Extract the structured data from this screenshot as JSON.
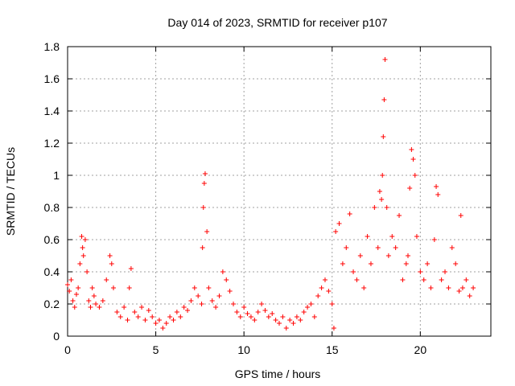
{
  "chart_data": {
    "type": "scatter",
    "title": "Day 014 of 2023, SRMTID for receiver p107",
    "xlabel": "GPS time / hours",
    "ylabel": "SRMTID / TECUs",
    "xlim": [
      0,
      24
    ],
    "ylim": [
      0,
      1.8
    ],
    "xticks": [
      0,
      5,
      10,
      15,
      20
    ],
    "xtick_labels": [
      "0",
      "5",
      "10",
      "15",
      "20"
    ],
    "yticks": [
      0,
      0.2,
      0.4,
      0.6,
      0.8,
      1,
      1.2,
      1.4,
      1.6,
      1.8
    ],
    "ytick_labels": [
      "0",
      "0.2",
      "0.4",
      "0.6",
      "0.8",
      "1",
      "1.2",
      "1.4",
      "1.6",
      "1.8"
    ],
    "grid": true,
    "marker": "plus",
    "marker_color": "#ff0000",
    "series": [
      {
        "name": "SRMTID",
        "x": [
          0.0,
          0.1,
          0.2,
          0.3,
          0.4,
          0.5,
          0.6,
          0.7,
          0.8,
          0.85,
          0.9,
          1.0,
          1.1,
          1.2,
          1.3,
          1.4,
          1.5,
          1.6,
          1.8,
          2.0,
          2.2,
          2.4,
          2.5,
          2.6,
          2.8,
          3.0,
          3.2,
          3.4,
          3.5,
          3.6,
          3.8,
          4.0,
          4.2,
          4.4,
          4.6,
          4.8,
          5.0,
          5.2,
          5.4,
          5.6,
          5.8,
          6.0,
          6.2,
          6.4,
          6.6,
          6.8,
          7.0,
          7.2,
          7.4,
          7.6,
          7.65,
          7.7,
          7.75,
          7.8,
          7.9,
          8.0,
          8.2,
          8.4,
          8.6,
          8.8,
          9.0,
          9.2,
          9.4,
          9.6,
          9.8,
          10.0,
          10.2,
          10.4,
          10.6,
          10.8,
          11.0,
          11.2,
          11.4,
          11.6,
          11.8,
          12.0,
          12.2,
          12.4,
          12.6,
          12.8,
          13.0,
          13.2,
          13.4,
          13.6,
          13.8,
          14.0,
          14.2,
          14.4,
          14.6,
          14.8,
          15.0,
          15.1,
          15.2,
          15.4,
          15.6,
          15.8,
          16.0,
          16.2,
          16.4,
          16.6,
          16.8,
          17.0,
          17.2,
          17.4,
          17.6,
          17.7,
          17.8,
          17.85,
          17.9,
          17.95,
          18.0,
          18.1,
          18.2,
          18.4,
          18.6,
          18.8,
          19.0,
          19.2,
          19.3,
          19.4,
          19.5,
          19.6,
          19.7,
          19.8,
          20.0,
          20.2,
          20.4,
          20.6,
          20.8,
          20.9,
          21.0,
          21.2,
          21.4,
          21.6,
          21.8,
          22.0,
          22.2,
          22.3,
          22.4,
          22.6,
          22.8,
          23.0
        ],
        "y": [
          0.32,
          0.28,
          0.35,
          0.22,
          0.18,
          0.26,
          0.3,
          0.45,
          0.62,
          0.55,
          0.5,
          0.6,
          0.4,
          0.22,
          0.18,
          0.3,
          0.25,
          0.2,
          0.18,
          0.22,
          0.35,
          0.5,
          0.45,
          0.3,
          0.15,
          0.12,
          0.18,
          0.1,
          0.3,
          0.42,
          0.15,
          0.12,
          0.18,
          0.1,
          0.16,
          0.12,
          0.08,
          0.1,
          0.05,
          0.08,
          0.12,
          0.1,
          0.15,
          0.12,
          0.18,
          0.16,
          0.22,
          0.3,
          0.25,
          0.2,
          0.55,
          0.8,
          0.95,
          1.01,
          0.65,
          0.3,
          0.22,
          0.18,
          0.25,
          0.4,
          0.35,
          0.28,
          0.2,
          0.15,
          0.12,
          0.18,
          0.14,
          0.12,
          0.1,
          0.15,
          0.2,
          0.16,
          0.12,
          0.14,
          0.1,
          0.08,
          0.12,
          0.05,
          0.1,
          0.08,
          0.12,
          0.1,
          0.15,
          0.18,
          0.2,
          0.12,
          0.25,
          0.3,
          0.35,
          0.28,
          0.2,
          0.05,
          0.65,
          0.7,
          0.45,
          0.55,
          0.76,
          0.4,
          0.35,
          0.5,
          0.3,
          0.62,
          0.45,
          0.8,
          0.55,
          0.9,
          0.85,
          1.0,
          1.24,
          1.47,
          1.72,
          0.8,
          0.5,
          0.62,
          0.55,
          0.75,
          0.35,
          0.45,
          0.5,
          0.92,
          1.16,
          1.1,
          1.0,
          0.62,
          0.4,
          0.35,
          0.45,
          0.3,
          0.6,
          0.93,
          0.88,
          0.35,
          0.4,
          0.3,
          0.55,
          0.45,
          0.28,
          0.75,
          0.3,
          0.35,
          0.25,
          0.3
        ]
      }
    ]
  }
}
